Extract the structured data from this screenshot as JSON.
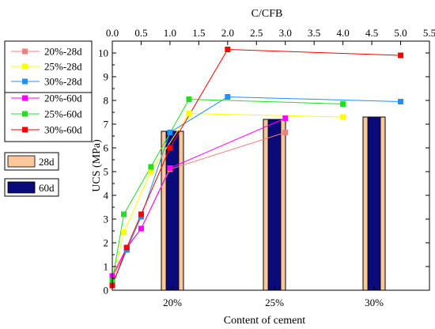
{
  "chart_data": {
    "type": "bar+line",
    "title": "",
    "primary_x": {
      "label": "Content of cement",
      "categories": [
        "20%",
        "25%",
        "30%"
      ]
    },
    "secondary_x": {
      "label": "C/CFB",
      "range": [
        0.0,
        5.5
      ],
      "ticks": [
        "0.0",
        "0.5",
        "1.0",
        "1.5",
        "2.0",
        "2.5",
        "3.0",
        "3.5",
        "4.0",
        "4.5",
        "5.0",
        "5.5"
      ]
    },
    "y": {
      "label": "UCS (MPa)",
      "range": [
        0,
        10.5
      ],
      "ticks": [
        "0",
        "1",
        "2",
        "3",
        "4",
        "5",
        "6",
        "7",
        "8",
        "9",
        "10"
      ]
    },
    "bars": [
      {
        "name": "28d",
        "color": "#FCC89A",
        "values": [
          6.7,
          7.2,
          7.3
        ]
      },
      {
        "name": "60d",
        "color": "#0A0A7A",
        "values": [
          6.7,
          7.2,
          7.3
        ]
      }
    ],
    "series": [
      {
        "name": "20%-28d",
        "color": "#F08080",
        "x": [
          0.0,
          0.25,
          0.5,
          1.0,
          3.0
        ],
        "y": [
          0.5,
          1.75,
          2.6,
          5.1,
          6.65
        ]
      },
      {
        "name": "25%-28d",
        "color": "#FFFF00",
        "x": [
          0.0,
          0.2,
          0.67,
          1.33,
          4.0
        ],
        "y": [
          0.3,
          2.45,
          5.0,
          7.45,
          7.3
        ]
      },
      {
        "name": "30%-28d",
        "color": "#1E90FF",
        "x": [
          0.0,
          0.25,
          0.5,
          1.0,
          2.0,
          5.0
        ],
        "y": [
          0.2,
          1.7,
          3.1,
          6.65,
          8.15,
          7.95
        ]
      },
      {
        "name": "20%-60d",
        "color": "#FF00FF",
        "x": [
          0.0,
          0.25,
          0.5,
          1.0,
          3.0
        ],
        "y": [
          0.6,
          1.8,
          2.6,
          5.15,
          7.25
        ]
      },
      {
        "name": "25%-60d",
        "color": "#22DD22",
        "x": [
          0.0,
          0.2,
          0.67,
          1.33,
          4.0
        ],
        "y": [
          0.4,
          3.2,
          5.2,
          8.05,
          7.85
        ]
      },
      {
        "name": "30%-60d",
        "color": "#FF0000",
        "x": [
          0.0,
          0.25,
          0.5,
          1.0,
          2.0,
          5.0
        ],
        "y": [
          0.2,
          1.8,
          3.2,
          6.0,
          10.15,
          9.9
        ]
      }
    ]
  }
}
